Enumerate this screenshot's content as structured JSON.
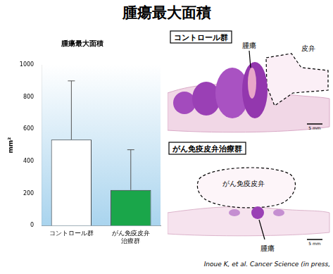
{
  "title": "腫瘍最大面積",
  "chart_data": {
    "type": "bar",
    "title": "腫瘍最大面積",
    "categories": [
      "コントロール群",
      "がん免疫皮弁治療群"
    ],
    "values": [
      535,
      222
    ],
    "errors": [
      365,
      250
    ],
    "colors": [
      "#ffffff",
      "#1aa64a"
    ],
    "ylabel": "mm²",
    "ylim": [
      0,
      1000
    ],
    "yticks": [
      0,
      200,
      400,
      600,
      800,
      1000
    ],
    "grid": false
  },
  "panels": [
    {
      "label": "コントロール群",
      "annotations": [
        "腫瘍",
        "皮弁"
      ],
      "scale_bar": "5 mm"
    },
    {
      "label": "がん免疫皮弁治療群",
      "annotations": [
        "がん免疫皮弁",
        "腫瘍"
      ],
      "scale_bar": "5 mm"
    }
  ],
  "citation": "Inoue K, et al. Cancer Science (in press,"
}
